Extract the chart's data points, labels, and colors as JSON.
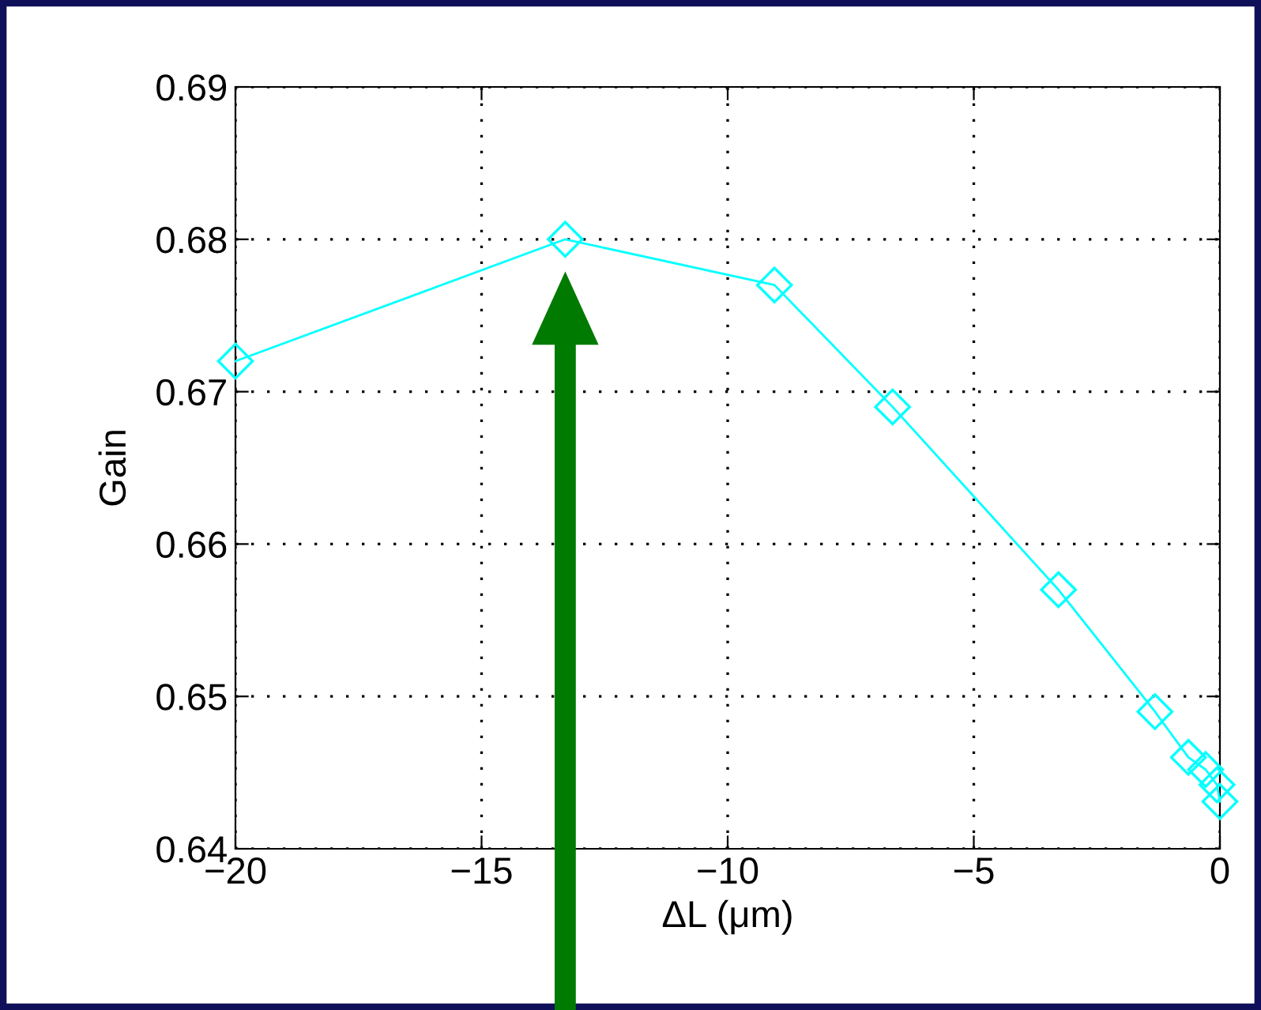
{
  "chart_data": {
    "type": "line",
    "xlabel": "ΔL (μm)",
    "ylabel": "Gain",
    "x": [
      -20,
      -13.3,
      -9.05,
      -6.65,
      -3.28,
      -1.32,
      -0.64,
      -0.29,
      -0.06,
      0
    ],
    "series": [
      {
        "color": "#00ffff",
        "values": [
          0.672,
          0.68,
          0.677,
          0.669,
          0.657,
          0.649,
          0.646,
          0.6452,
          0.6442,
          0.6431
        ]
      }
    ],
    "xlim": [
      -20,
      0
    ],
    "xticks": [
      {
        "value": -20,
        "label": "−20"
      },
      {
        "value": -15,
        "label": "−15"
      },
      {
        "value": -10,
        "label": "−10"
      },
      {
        "value": -5,
        "label": "−5"
      },
      0
    ],
    "ylim": [
      0.64,
      0.69
    ],
    "yticks": [
      {
        "value": 0.64,
        "label": "0.64"
      },
      {
        "value": 0.65,
        "label": "0.65"
      },
      {
        "value": 0.66,
        "label": "0.66"
      },
      {
        "value": 0.67,
        "label": "0.67"
      },
      {
        "value": 0.68,
        "label": "0.68"
      },
      {
        "value": 0.69,
        "label": "0.69"
      }
    ],
    "grid": true,
    "marker": "diamond",
    "line_style": "solid"
  }
}
